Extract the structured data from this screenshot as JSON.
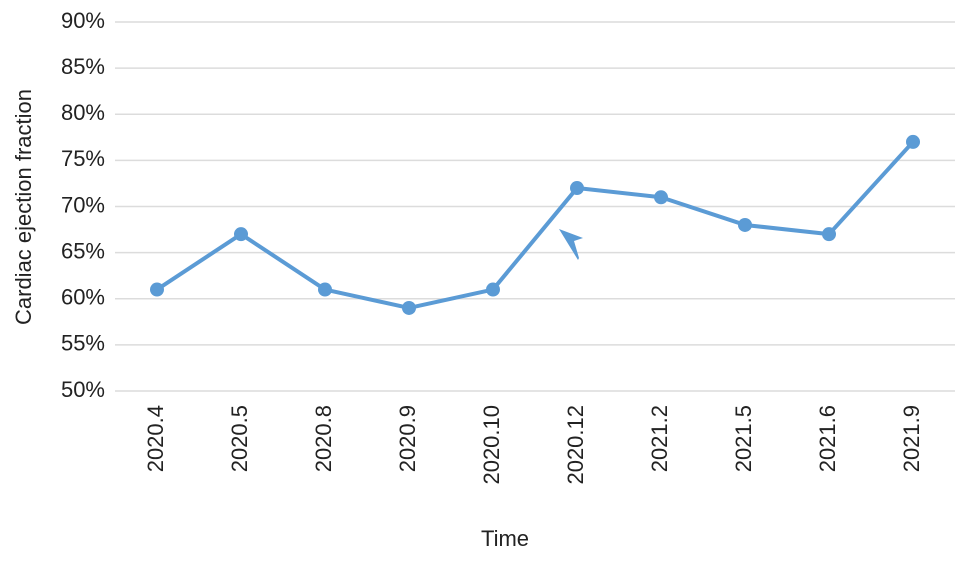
{
  "chart_data": {
    "type": "line",
    "y_label": "Cardiac ejection fraction",
    "x_label": "Time",
    "categories": [
      "2020.4",
      "2020.5",
      "2020.8",
      "2020.9",
      "2020.10",
      "2020.12",
      "2021.2",
      "2021.5",
      "2021.6",
      "2021.9"
    ],
    "series": [
      {
        "name": "Cardiac ejection fraction",
        "color": "#5b9bd5",
        "values": [
          61,
          67,
          61,
          59,
          61,
          72,
          71,
          68,
          67,
          77
        ]
      }
    ],
    "ylim": [
      50,
      90
    ],
    "yticks": [
      {
        "value": 50,
        "label": "50%"
      },
      {
        "value": 55,
        "label": "55%"
      },
      {
        "value": 60,
        "label": "60%"
      },
      {
        "value": 65,
        "label": "65%"
      },
      {
        "value": 70,
        "label": "70%"
      },
      {
        "value": 75,
        "label": "75%"
      },
      {
        "value": 80,
        "label": "80%"
      },
      {
        "value": 85,
        "label": "85%"
      },
      {
        "value": 90,
        "label": "90%"
      }
    ],
    "grid": true
  }
}
